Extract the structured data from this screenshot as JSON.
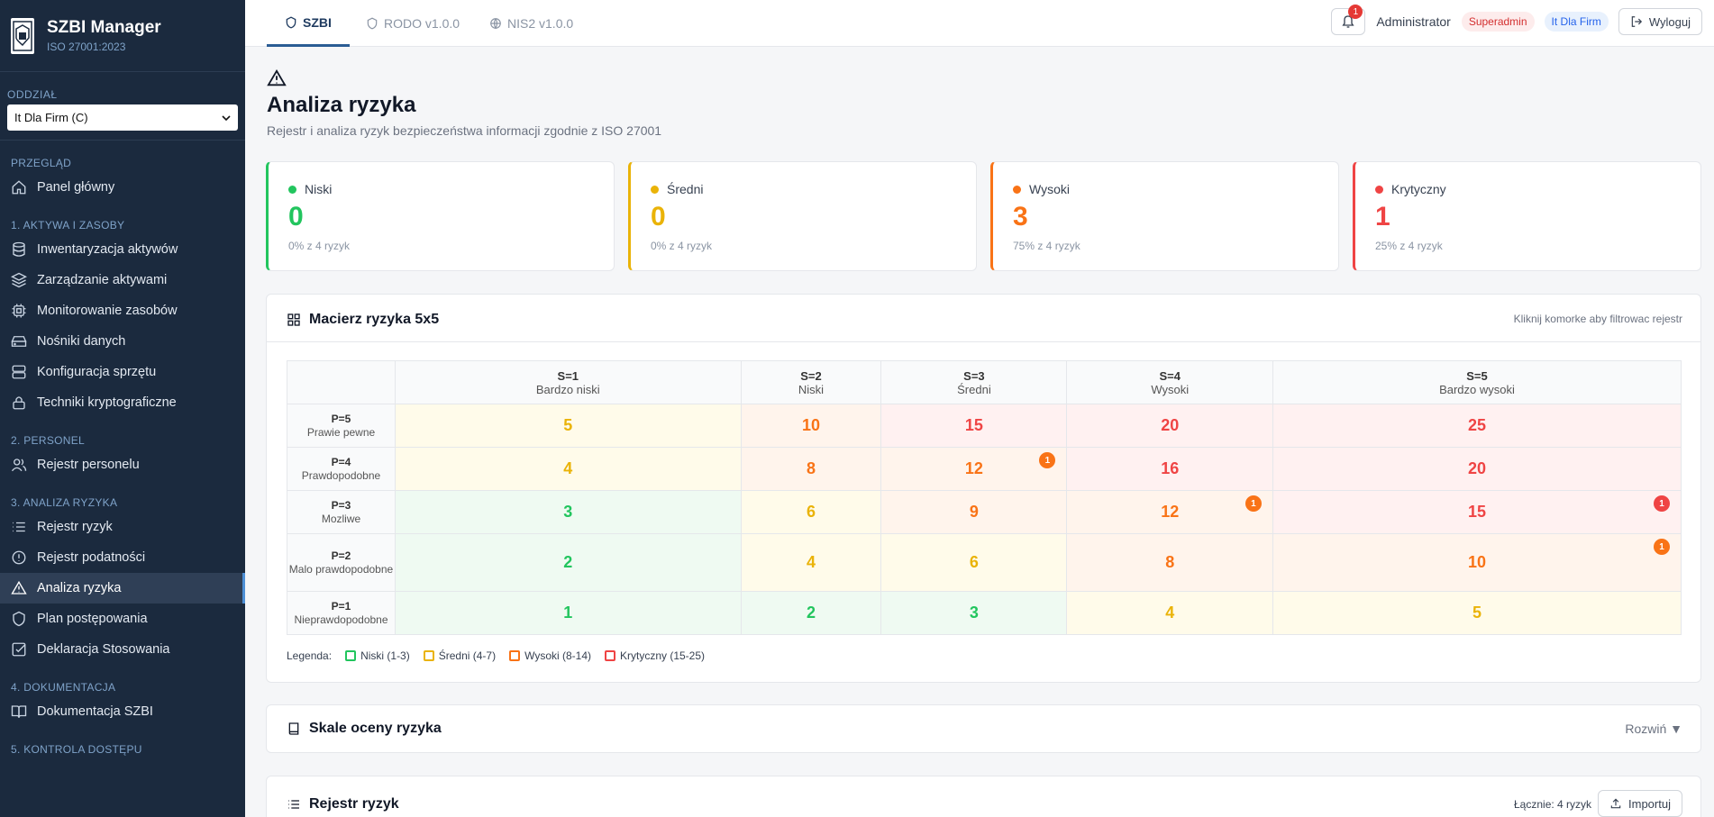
{
  "app": {
    "title": "SZBI Manager",
    "subtitle": "ISO 27001:2023"
  },
  "branch": {
    "label": "ODDZIAŁ",
    "value": "It Dla Firm (C)"
  },
  "nav": {
    "sec_overview": "PRZEGLĄD",
    "dashboard": "Panel główny",
    "sec_assets": "1. AKTYWA I ZASOBY",
    "inventory": "Inwentaryzacja aktywów",
    "asset_mgmt": "Zarządzanie aktywami",
    "monitoring": "Monitorowanie zasobów",
    "media": "Nośniki danych",
    "hardware": "Konfiguracja sprzętu",
    "crypto": "Techniki kryptograficzne",
    "sec_personnel": "2. PERSONEL",
    "personnel": "Rejestr personelu",
    "sec_risk": "3. ANALIZA RYZYKA",
    "risk_register": "Rejestr ryzyk",
    "vuln_register": "Rejestr podatności",
    "risk_analysis": "Analiza ryzyka",
    "treatment": "Plan postępowania",
    "soa": "Deklaracja Stosowania",
    "sec_docs": "4. DOKUMENTACJA",
    "docs": "Dokumentacja SZBI",
    "sec_access": "5. KONTROLA DOSTĘPU"
  },
  "tabs": {
    "szbi": "SZBI",
    "rodo": "RODO v1.0.0",
    "nis2": "NIS2 v1.0.0"
  },
  "header": {
    "notif_count": "1",
    "user": "Administrator",
    "role": "Superadmin",
    "org": "It Dla Firm",
    "logout": "Wyloguj"
  },
  "page": {
    "title": "Analiza ryzyka",
    "subtitle": "Rejestr i analiza ryzyk bezpieczeństwa informacji zgodnie z ISO 27001"
  },
  "stats": [
    {
      "label": "Niski",
      "value": "0",
      "sub": "0% z 4 ryzyk",
      "color": "#22c55e"
    },
    {
      "label": "Średni",
      "value": "0",
      "sub": "0% z 4 ryzyk",
      "color": "#eab308"
    },
    {
      "label": "Wysoki",
      "value": "3",
      "sub": "75% z 4 ryzyk",
      "color": "#f97316"
    },
    {
      "label": "Krytyczny",
      "value": "1",
      "sub": "25% z 4 ryzyk",
      "color": "#ef4444"
    }
  ],
  "matrix": {
    "title": "Macierz ryzyka 5x5",
    "hint": "Kliknij komorke aby filtrowac rejestr",
    "cols": [
      {
        "s": "S=1",
        "name": "Bardzo niski"
      },
      {
        "s": "S=2",
        "name": "Niski"
      },
      {
        "s": "S=3",
        "name": "Średni"
      },
      {
        "s": "S=4",
        "name": "Wysoki"
      },
      {
        "s": "S=5",
        "name": "Bardzo wysoki"
      }
    ],
    "rows": [
      {
        "p": "P=5",
        "name": "Prawie pewne",
        "cells": [
          "5",
          "10",
          "15",
          "20",
          "25"
        ]
      },
      {
        "p": "P=4",
        "name": "Prawdopodobne",
        "cells": [
          "4",
          "8",
          "12",
          "16",
          "20"
        ]
      },
      {
        "p": "P=3",
        "name": "Mozliwe",
        "cells": [
          "3",
          "6",
          "9",
          "12",
          "15"
        ]
      },
      {
        "p": "P=2",
        "name": "Malo prawdopodobne",
        "cells": [
          "2",
          "4",
          "6",
          "8",
          "10"
        ]
      },
      {
        "p": "P=1",
        "name": "Nieprawdopodobne",
        "cells": [
          "1",
          "2",
          "3",
          "4",
          "5"
        ]
      }
    ],
    "badges": [
      {
        "row": 1,
        "col": 2,
        "count": "1"
      },
      {
        "row": 2,
        "col": 3,
        "count": "1"
      },
      {
        "row": 2,
        "col": 4,
        "count": "1"
      },
      {
        "row": 3,
        "col": 4,
        "count": "1"
      }
    ],
    "legend": {
      "label": "Legenda:",
      "low": "Niski (1-3)",
      "medium": "Średni (4-7)",
      "high": "Wysoki (8-14)",
      "critical": "Krytyczny (15-25)"
    }
  },
  "scales": {
    "title": "Skale oceny ryzyka",
    "toggle": "Rozwiń ▼"
  },
  "register": {
    "title": "Rejestr ryzyk",
    "total": "Łącznie: 4 ryzyk",
    "import": "Importuj"
  }
}
